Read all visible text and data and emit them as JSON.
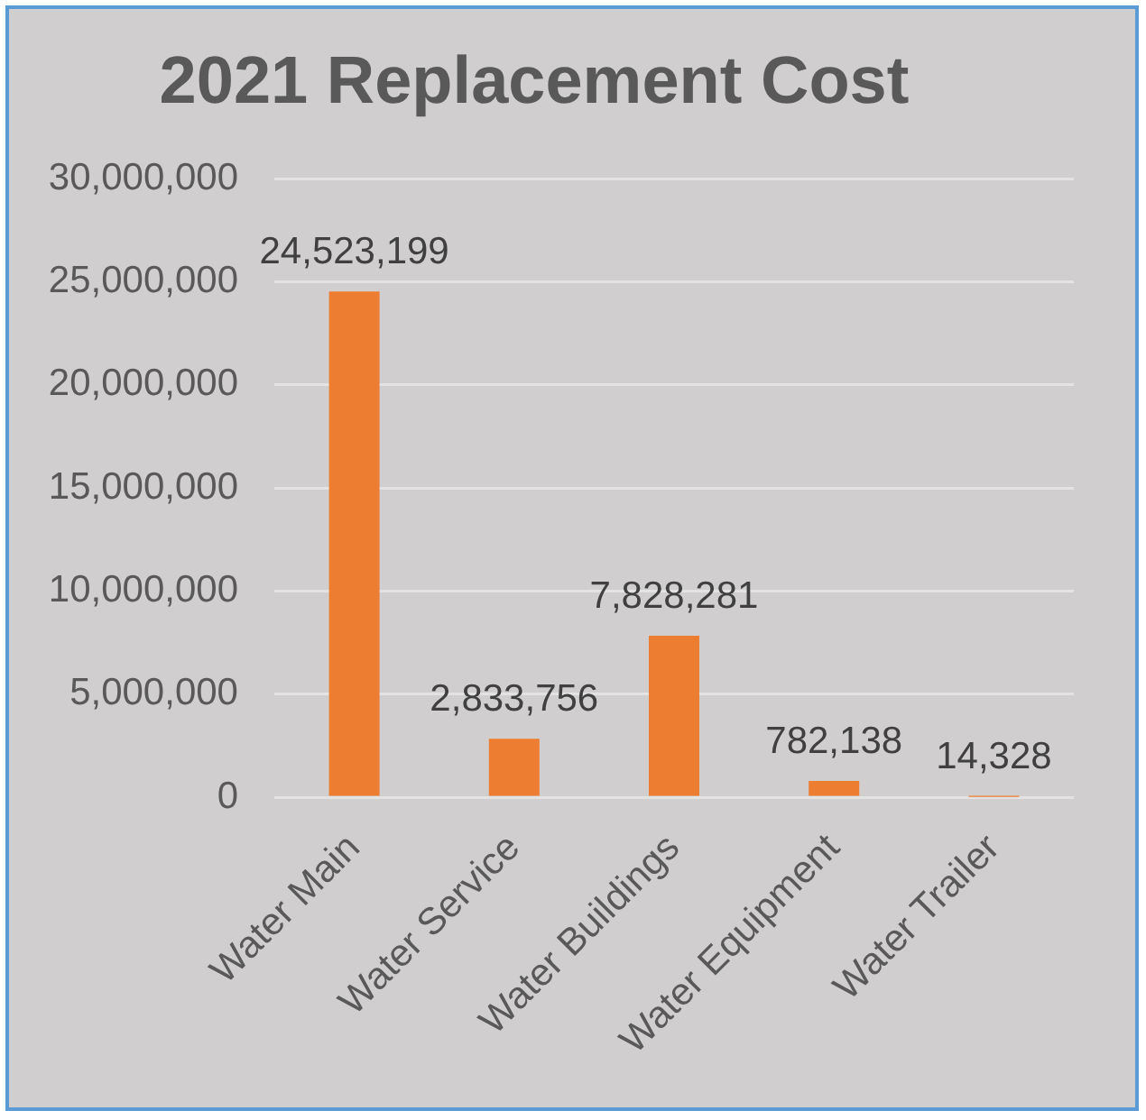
{
  "chart_data": {
    "type": "bar",
    "title": "2021 Replacement Cost",
    "categories": [
      "Water Main",
      "Water Service",
      "Water Buildings",
      "Water Equipment",
      "Water Trailer"
    ],
    "values": [
      24523199,
      2833756,
      7828281,
      782138,
      14328
    ],
    "color": "#ed7d31",
    "value_labels": [
      "24,523,199",
      "2,833,756",
      "7,828,281",
      "782,138",
      "14,328"
    ],
    "ylim": [
      0,
      30000000
    ],
    "yticks": [
      {
        "value": 0,
        "label": "0"
      },
      {
        "value": 5000000,
        "label": "5,000,000"
      },
      {
        "value": 10000000,
        "label": "10,000,000"
      },
      {
        "value": 15000000,
        "label": "15,000,000"
      },
      {
        "value": 20000000,
        "label": "20,000,000"
      },
      {
        "value": 25000000,
        "label": "25,000,000"
      },
      {
        "value": 30000000,
        "label": "30,000,000"
      }
    ],
    "grid": "y"
  }
}
